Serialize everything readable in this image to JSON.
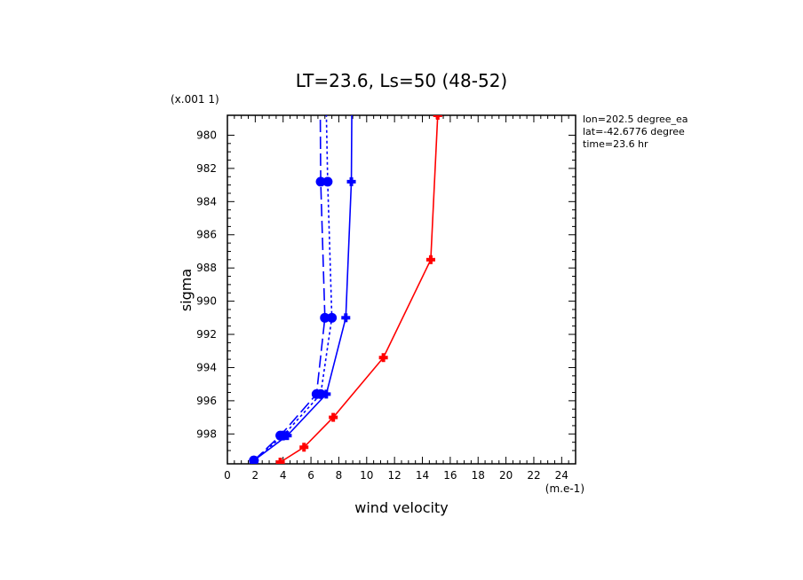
{
  "chart_data": {
    "type": "line",
    "title": "LT=23.6, Ls=50 (48-52)",
    "xlabel": "wind velocity",
    "ylabel": "sigma",
    "x_unit_label": "(m.e-1)",
    "y_scale_label": "(x.001 1)",
    "xlim": [
      0,
      25
    ],
    "ylim": [
      999.8,
      978.8
    ],
    "y_inverted": true,
    "x_ticks": [
      "0",
      "2",
      "4",
      "6",
      "8",
      "10",
      "12",
      "14",
      "16",
      "18",
      "20",
      "22",
      "24"
    ],
    "y_ticks": [
      "980",
      "982",
      "984",
      "986",
      "988",
      "990",
      "992",
      "994",
      "996",
      "998"
    ],
    "annotations": [
      "lon=202.5 degree_ea",
      "lat=-42.6776 degree",
      "time=23.6 hr"
    ],
    "series": [
      {
        "color": "#ff0000",
        "line_style": "solid",
        "marker": "cross",
        "points": [
          [
            3.8,
            999.7
          ],
          [
            5.5,
            998.8
          ],
          [
            7.6,
            997.0
          ],
          [
            11.2,
            993.4
          ],
          [
            14.6,
            987.5
          ],
          [
            15.1,
            978.8
          ]
        ]
      },
      {
        "color": "#0000ff",
        "line_style": "solid",
        "marker": "cross",
        "points": [
          [
            1.9,
            999.6
          ],
          [
            4.3,
            998.1
          ],
          [
            7.1,
            995.6
          ],
          [
            8.5,
            991.0
          ],
          [
            8.9,
            982.8
          ],
          [
            9.0,
            970.0
          ]
        ]
      },
      {
        "color": "#0000ff",
        "line_style": "dashed",
        "marker": "dot",
        "points": [
          [
            1.9,
            999.6
          ],
          [
            3.8,
            998.1
          ],
          [
            6.4,
            995.6
          ],
          [
            7.0,
            991.0
          ],
          [
            6.7,
            982.8
          ],
          [
            6.6,
            970.0
          ]
        ]
      },
      {
        "color": "#0000ff",
        "line_style": "dotted",
        "marker": "dot",
        "points": [
          [
            1.9,
            999.6
          ],
          [
            4.0,
            998.1
          ],
          [
            6.7,
            995.6
          ],
          [
            7.5,
            991.0
          ],
          [
            7.2,
            982.8
          ],
          [
            6.9,
            970.0
          ]
        ]
      }
    ]
  }
}
